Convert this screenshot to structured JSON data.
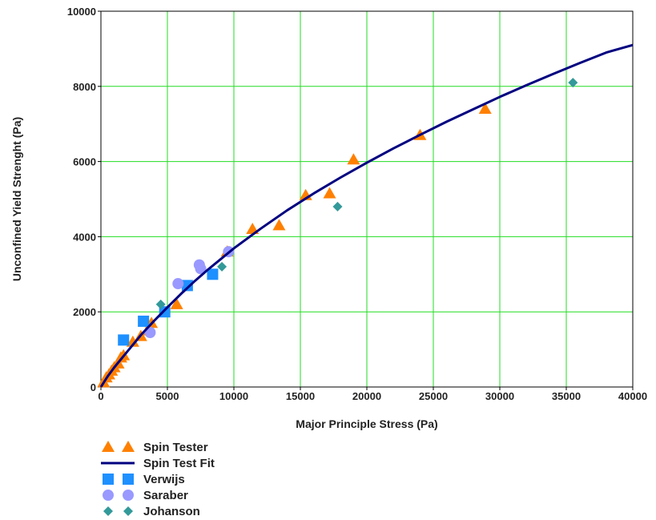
{
  "chart_data": {
    "type": "scatter",
    "title": "",
    "xlabel": "Major Principle Stress (Pa)",
    "ylabel": "Unconfined Yield Strenght (Pa)",
    "xlim": [
      0,
      40000
    ],
    "ylim": [
      0,
      10000
    ],
    "x_ticks": [
      "0",
      "5000",
      "10000",
      "15000",
      "20000",
      "25000",
      "30000",
      "35000",
      "40000"
    ],
    "y_ticks": [
      "0",
      "2000",
      "4000",
      "6000",
      "8000",
      "10000"
    ],
    "grid": true,
    "grid_color": "#22dd22",
    "legend_position": "bottom-left",
    "series": [
      {
        "name": "Spin Tester",
        "kind": "scatter",
        "marker": "triangle",
        "color": "#ff8000",
        "points": [
          [
            200,
            120
          ],
          [
            400,
            250
          ],
          [
            600,
            330
          ],
          [
            800,
            430
          ],
          [
            1000,
            520
          ],
          [
            1300,
            620
          ],
          [
            1500,
            780
          ],
          [
            1700,
            840
          ],
          [
            2400,
            1200
          ],
          [
            3000,
            1350
          ],
          [
            3500,
            1500
          ],
          [
            3800,
            1700
          ],
          [
            5700,
            2200
          ],
          [
            9500,
            3600
          ],
          [
            11400,
            4200
          ],
          [
            13400,
            4300
          ],
          [
            15400,
            5100
          ],
          [
            17200,
            5150
          ],
          [
            19000,
            6050
          ],
          [
            24000,
            6700
          ],
          [
            28900,
            7400
          ]
        ]
      },
      {
        "name": "Spin Test Fit",
        "kind": "line",
        "color": "#000080",
        "points": [
          [
            0,
            0
          ],
          [
            500,
            280
          ],
          [
            1000,
            520
          ],
          [
            2000,
            950
          ],
          [
            3000,
            1380
          ],
          [
            4000,
            1760
          ],
          [
            5000,
            2120
          ],
          [
            6000,
            2470
          ],
          [
            7000,
            2800
          ],
          [
            8000,
            3110
          ],
          [
            9000,
            3400
          ],
          [
            10000,
            3690
          ],
          [
            12000,
            4210
          ],
          [
            14000,
            4700
          ],
          [
            16000,
            5150
          ],
          [
            18000,
            5570
          ],
          [
            20000,
            5970
          ],
          [
            22000,
            6350
          ],
          [
            24000,
            6710
          ],
          [
            26000,
            7060
          ],
          [
            28000,
            7390
          ],
          [
            30000,
            7720
          ],
          [
            32000,
            8030
          ],
          [
            34000,
            8330
          ],
          [
            36000,
            8620
          ],
          [
            38000,
            8900
          ],
          [
            40000,
            9100
          ]
        ]
      },
      {
        "name": "Verwijs",
        "kind": "scatter",
        "marker": "square",
        "color": "#1e90ff",
        "points": [
          [
            1700,
            1250
          ],
          [
            3200,
            1750
          ],
          [
            4800,
            2000
          ],
          [
            6500,
            2700
          ],
          [
            8400,
            3000
          ]
        ]
      },
      {
        "name": "Saraber",
        "kind": "scatter",
        "marker": "circle",
        "color": "#9999ff",
        "points": [
          [
            3700,
            1450
          ],
          [
            5800,
            2750
          ],
          [
            7400,
            3250
          ],
          [
            7500,
            3150
          ],
          [
            9600,
            3600
          ]
        ]
      },
      {
        "name": "Johanson",
        "kind": "scatter",
        "marker": "diamond",
        "color": "#339999",
        "points": [
          [
            4500,
            2200
          ],
          [
            9100,
            3200
          ],
          [
            17800,
            4800
          ],
          [
            35500,
            8100
          ]
        ]
      }
    ]
  }
}
